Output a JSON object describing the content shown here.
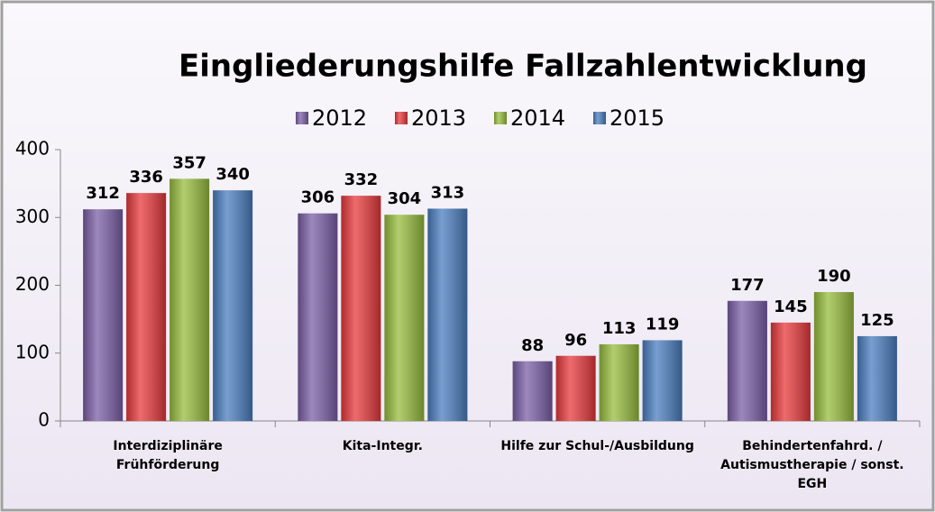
{
  "chart_data": {
    "type": "bar",
    "title": "Eingliederungshilfe  Fallzahlentwicklung",
    "categories": [
      "Interdiziplinäre\nFrühförderung",
      "Kita-Integr.",
      "Hilfe zur Schul-/Ausbildung",
      "Behindertenfahrd. /\nAutismustherapie / sonst.\nEGH"
    ],
    "series": [
      {
        "name": "2012",
        "color": "#7b5fa6",
        "values": [
          312,
          306,
          88,
          177
        ]
      },
      {
        "name": "2013",
        "color": "#e8393c",
        "values": [
          336,
          332,
          96,
          145
        ]
      },
      {
        "name": "2014",
        "color": "#97bd3d",
        "values": [
          357,
          304,
          113,
          190
        ]
      },
      {
        "name": "2015",
        "color": "#4a7ec0",
        "values": [
          340,
          313,
          119,
          125
        ]
      }
    ],
    "ylim": [
      0,
      400
    ],
    "yticks": [
      0,
      100,
      200,
      300,
      400
    ],
    "grid": false
  }
}
